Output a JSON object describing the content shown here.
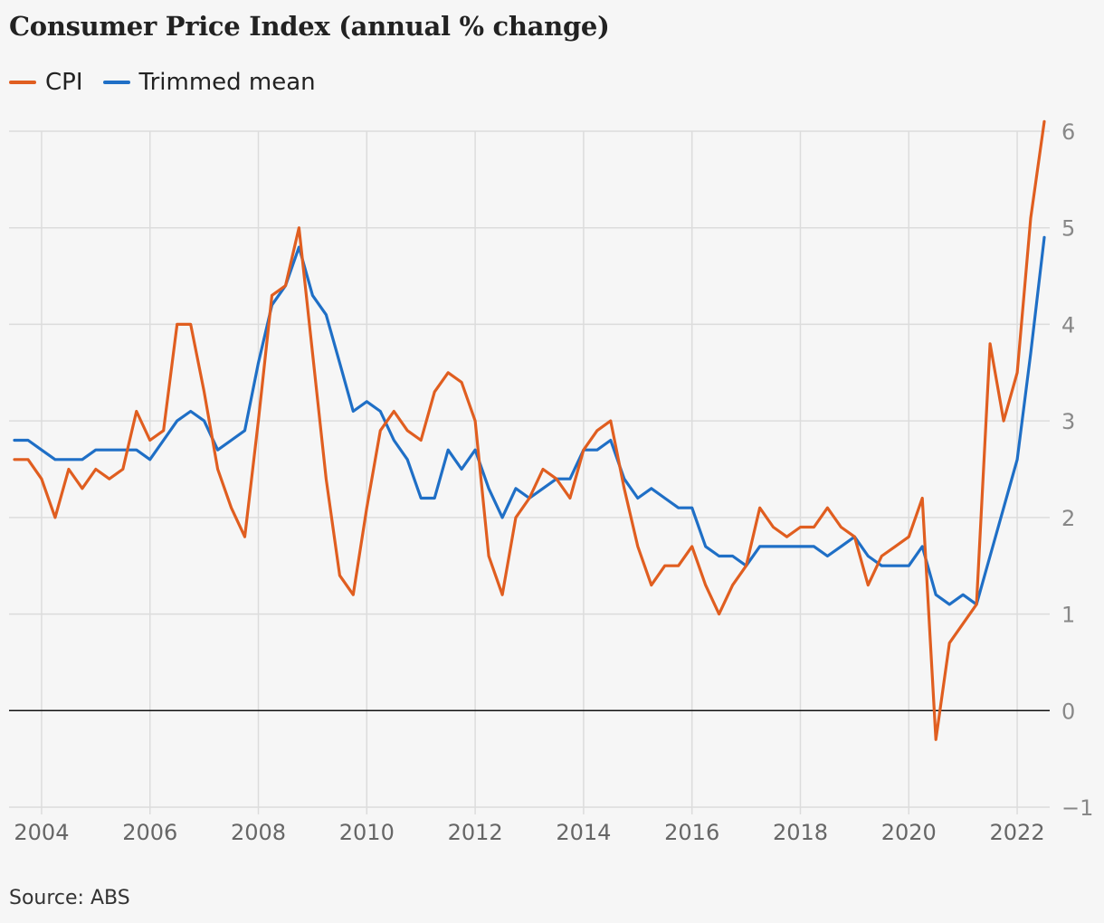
{
  "title": "Consumer Price Index (annual % change)",
  "source": "Source: ABS",
  "colors": {
    "cpi": "#e05e20",
    "trimmed": "#1f6fc6",
    "grid": "#dcdcdc",
    "zero": "#121212"
  },
  "chart_data": {
    "type": "line",
    "title": "Consumer Price Index (annual % change)",
    "xlabel": "",
    "ylabel": "",
    "xlim": [
      2003.4,
      2022.6
    ],
    "ylim": [
      -1,
      6
    ],
    "x_ticks": [
      2004,
      2006,
      2008,
      2010,
      2012,
      2014,
      2016,
      2018,
      2020,
      2022
    ],
    "y_ticks": [
      -1,
      0,
      1,
      2,
      3,
      4,
      5,
      6
    ],
    "y_tick_labels": [
      "−1",
      "0",
      "1",
      "2",
      "3",
      "4",
      "5",
      "6"
    ],
    "grid": true,
    "legend_position": "top-left",
    "x": [
      2003.5,
      2003.75,
      2004.0,
      2004.25,
      2004.5,
      2004.75,
      2005.0,
      2005.25,
      2005.5,
      2005.75,
      2006.0,
      2006.25,
      2006.5,
      2006.75,
      2007.0,
      2007.25,
      2007.5,
      2007.75,
      2008.0,
      2008.25,
      2008.5,
      2008.75,
      2009.0,
      2009.25,
      2009.5,
      2009.75,
      2010.0,
      2010.25,
      2010.5,
      2010.75,
      2011.0,
      2011.25,
      2011.5,
      2011.75,
      2012.0,
      2012.25,
      2012.5,
      2012.75,
      2013.0,
      2013.25,
      2013.5,
      2013.75,
      2014.0,
      2014.25,
      2014.5,
      2014.75,
      2015.0,
      2015.25,
      2015.5,
      2015.75,
      2016.0,
      2016.25,
      2016.5,
      2016.75,
      2017.0,
      2017.25,
      2017.5,
      2017.75,
      2018.0,
      2018.25,
      2018.5,
      2018.75,
      2019.0,
      2019.25,
      2019.5,
      2019.75,
      2020.0,
      2020.25,
      2020.5,
      2020.75,
      2021.0,
      2021.25,
      2021.5,
      2021.75,
      2022.0,
      2022.25,
      2022.5
    ],
    "series": [
      {
        "name": "CPI",
        "color": "#e05e20",
        "values": [
          2.6,
          2.6,
          2.4,
          2.0,
          2.5,
          2.3,
          2.5,
          2.4,
          2.5,
          3.1,
          2.8,
          2.9,
          4.0,
          4.0,
          3.3,
          2.5,
          2.1,
          1.8,
          3.0,
          4.3,
          4.4,
          5.0,
          3.7,
          2.4,
          1.4,
          1.2,
          2.1,
          2.9,
          3.1,
          2.9,
          2.8,
          3.3,
          3.5,
          3.4,
          3.0,
          1.6,
          1.2,
          2.0,
          2.2,
          2.5,
          2.4,
          2.2,
          2.7,
          2.9,
          3.0,
          2.3,
          1.7,
          1.3,
          1.5,
          1.5,
          1.7,
          1.3,
          1.0,
          1.3,
          1.5,
          2.1,
          1.9,
          1.8,
          1.9,
          1.9,
          2.1,
          1.9,
          1.8,
          1.3,
          1.6,
          1.7,
          1.8,
          2.2,
          -0.3,
          0.7,
          0.9,
          1.1,
          3.8,
          3.0,
          3.5,
          5.1,
          6.1
        ]
      },
      {
        "name": "Trimmed mean",
        "color": "#1f6fc6",
        "values": [
          2.8,
          2.8,
          2.7,
          2.6,
          2.6,
          2.6,
          2.7,
          2.7,
          2.7,
          2.7,
          2.6,
          2.8,
          3.0,
          3.1,
          3.0,
          2.7,
          2.8,
          2.9,
          3.6,
          4.2,
          4.4,
          4.8,
          4.3,
          4.1,
          3.6,
          3.1,
          3.2,
          3.1,
          2.8,
          2.6,
          2.2,
          2.2,
          2.7,
          2.5,
          2.7,
          2.3,
          2.0,
          2.3,
          2.2,
          2.3,
          2.4,
          2.4,
          2.7,
          2.7,
          2.8,
          2.4,
          2.2,
          2.3,
          2.2,
          2.1,
          2.1,
          1.7,
          1.6,
          1.6,
          1.5,
          1.7,
          1.7,
          1.7,
          1.7,
          1.7,
          1.6,
          1.7,
          1.8,
          1.6,
          1.5,
          1.5,
          1.5,
          1.7,
          1.2,
          1.1,
          1.2,
          1.1,
          1.6,
          2.1,
          2.6,
          3.7,
          4.9
        ]
      }
    ]
  }
}
